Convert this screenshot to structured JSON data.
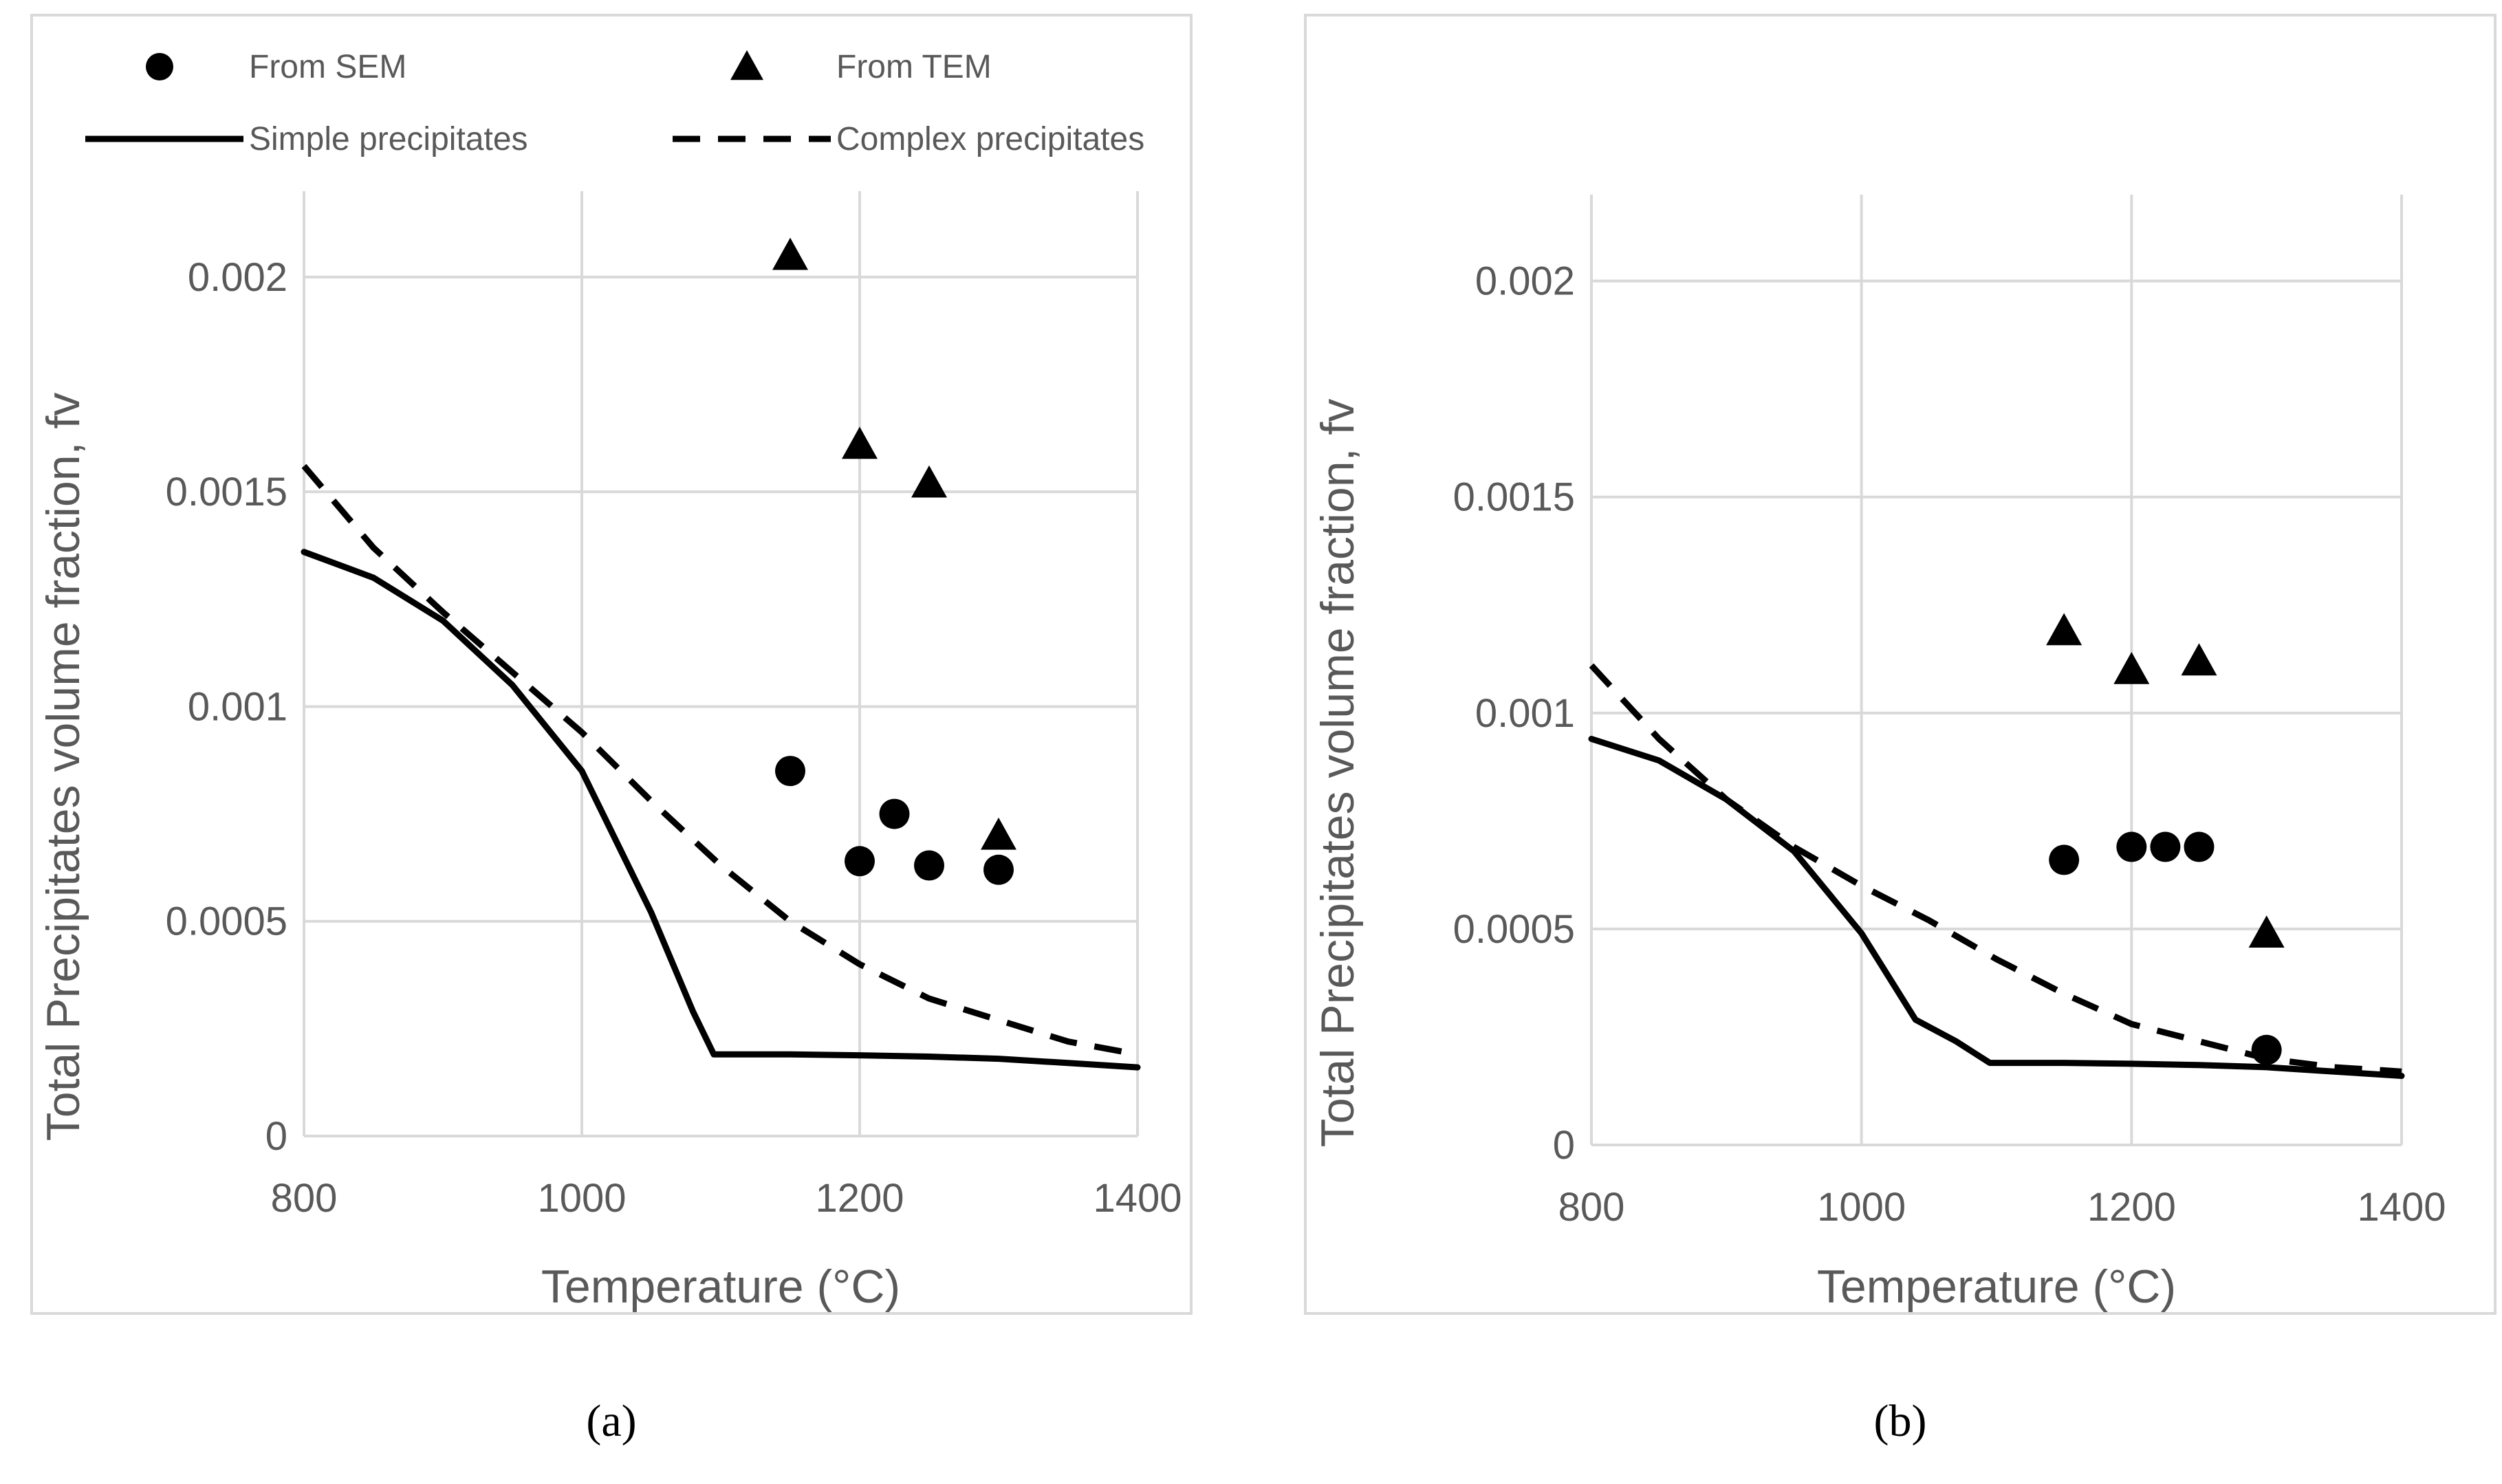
{
  "chart_data": [
    {
      "id": "a",
      "type": "scatter+line",
      "caption": "(a)",
      "xlabel": "Temperature (°C)",
      "ylabel": "Total Precipitates volume fraction, fv",
      "xlim": [
        800,
        1400
      ],
      "ylim": [
        0,
        0.0022
      ],
      "xticks": [
        800,
        1000,
        1200,
        1400
      ],
      "xtick_labels": [
        "800",
        "1000",
        "1200",
        "1400"
      ],
      "yticks": [
        0,
        0.0005,
        0.001,
        0.0015,
        0.002
      ],
      "ytick_labels": [
        "0",
        "0.0005",
        "0.001",
        "0.0015",
        "0.002"
      ],
      "grid": true,
      "legend": {
        "position": "top",
        "entries": [
          {
            "label": "From SEM",
            "marker": "circle"
          },
          {
            "label": "From TEM",
            "marker": "triangle"
          },
          {
            "label": "Simple precipitates",
            "line": "solid"
          },
          {
            "label": "Complex precipitates",
            "line": "dashed"
          }
        ]
      },
      "series": [
        {
          "name": "From SEM",
          "kind": "scatter",
          "marker": "circle",
          "x": [
            1150,
            1200,
            1225,
            1250,
            1300
          ],
          "y": [
            0.00085,
            0.00064,
            0.00075,
            0.00063,
            0.00062
          ]
        },
        {
          "name": "From TEM",
          "kind": "scatter",
          "marker": "triangle",
          "x": [
            1150,
            1200,
            1250,
            1300
          ],
          "y": [
            0.00205,
            0.00161,
            0.00152,
            0.0007
          ]
        },
        {
          "name": "Simple precipitates",
          "kind": "line",
          "style": "solid",
          "x": [
            800,
            850,
            900,
            950,
            1000,
            1050,
            1080,
            1095,
            1150,
            1200,
            1250,
            1300,
            1350,
            1400
          ],
          "y": [
            0.00136,
            0.0013,
            0.0012,
            0.00105,
            0.00085,
            0.00052,
            0.00029,
            0.00019,
            0.00019,
            0.000188,
            0.000185,
            0.00018,
            0.00017,
            0.00016
          ]
        },
        {
          "name": "Complex precipitates",
          "kind": "line",
          "style": "dashed",
          "x": [
            800,
            850,
            900,
            950,
            1000,
            1050,
            1100,
            1150,
            1200,
            1250,
            1300,
            1350,
            1400
          ],
          "y": [
            0.00156,
            0.00137,
            0.00122,
            0.00108,
            0.00094,
            0.00078,
            0.00063,
            0.0005,
            0.0004,
            0.00032,
            0.00027,
            0.00022,
            0.00019
          ]
        }
      ]
    },
    {
      "id": "b",
      "type": "scatter+line",
      "caption": "(b)",
      "xlabel": "Temperature (°C)",
      "ylabel": "Total Precipitates volume fraction, fv",
      "xlim": [
        800,
        1400
      ],
      "ylim": [
        0,
        0.0022
      ],
      "xticks": [
        800,
        1000,
        1200,
        1400
      ],
      "xtick_labels": [
        "800",
        "1000",
        "1200",
        "1400"
      ],
      "yticks": [
        0,
        0.0005,
        0.001,
        0.0015,
        0.002
      ],
      "ytick_labels": [
        "0",
        "0.0005",
        "0.001",
        "0.0015",
        "0.002"
      ],
      "grid": true,
      "series": [
        {
          "name": "From SEM",
          "kind": "scatter",
          "marker": "circle",
          "x": [
            1150,
            1200,
            1225,
            1250,
            1300
          ],
          "y": [
            0.00066,
            0.00069,
            0.00069,
            0.00069,
            0.00022
          ]
        },
        {
          "name": "From TEM",
          "kind": "scatter",
          "marker": "triangle",
          "x": [
            1150,
            1200,
            1250,
            1300
          ],
          "y": [
            0.00119,
            0.0011,
            0.00112,
            0.00049
          ]
        },
        {
          "name": "Simple precipitates",
          "kind": "line",
          "style": "solid",
          "x": [
            800,
            850,
            900,
            950,
            1000,
            1040,
            1070,
            1095,
            1150,
            1200,
            1250,
            1300,
            1350,
            1400
          ],
          "y": [
            0.00094,
            0.00089,
            0.0008,
            0.00068,
            0.00049,
            0.00029,
            0.00024,
            0.00019,
            0.00019,
            0.000188,
            0.000185,
            0.00018,
            0.00017,
            0.00016
          ]
        },
        {
          "name": "Complex precipitates",
          "kind": "line",
          "style": "dashed",
          "x": [
            800,
            850,
            900,
            950,
            1000,
            1050,
            1100,
            1150,
            1200,
            1250,
            1300,
            1350,
            1400
          ],
          "y": [
            0.00111,
            0.00094,
            0.0008,
            0.00069,
            0.0006,
            0.00052,
            0.00043,
            0.00035,
            0.00028,
            0.00024,
            0.0002,
            0.00018,
            0.00017
          ]
        }
      ]
    }
  ]
}
